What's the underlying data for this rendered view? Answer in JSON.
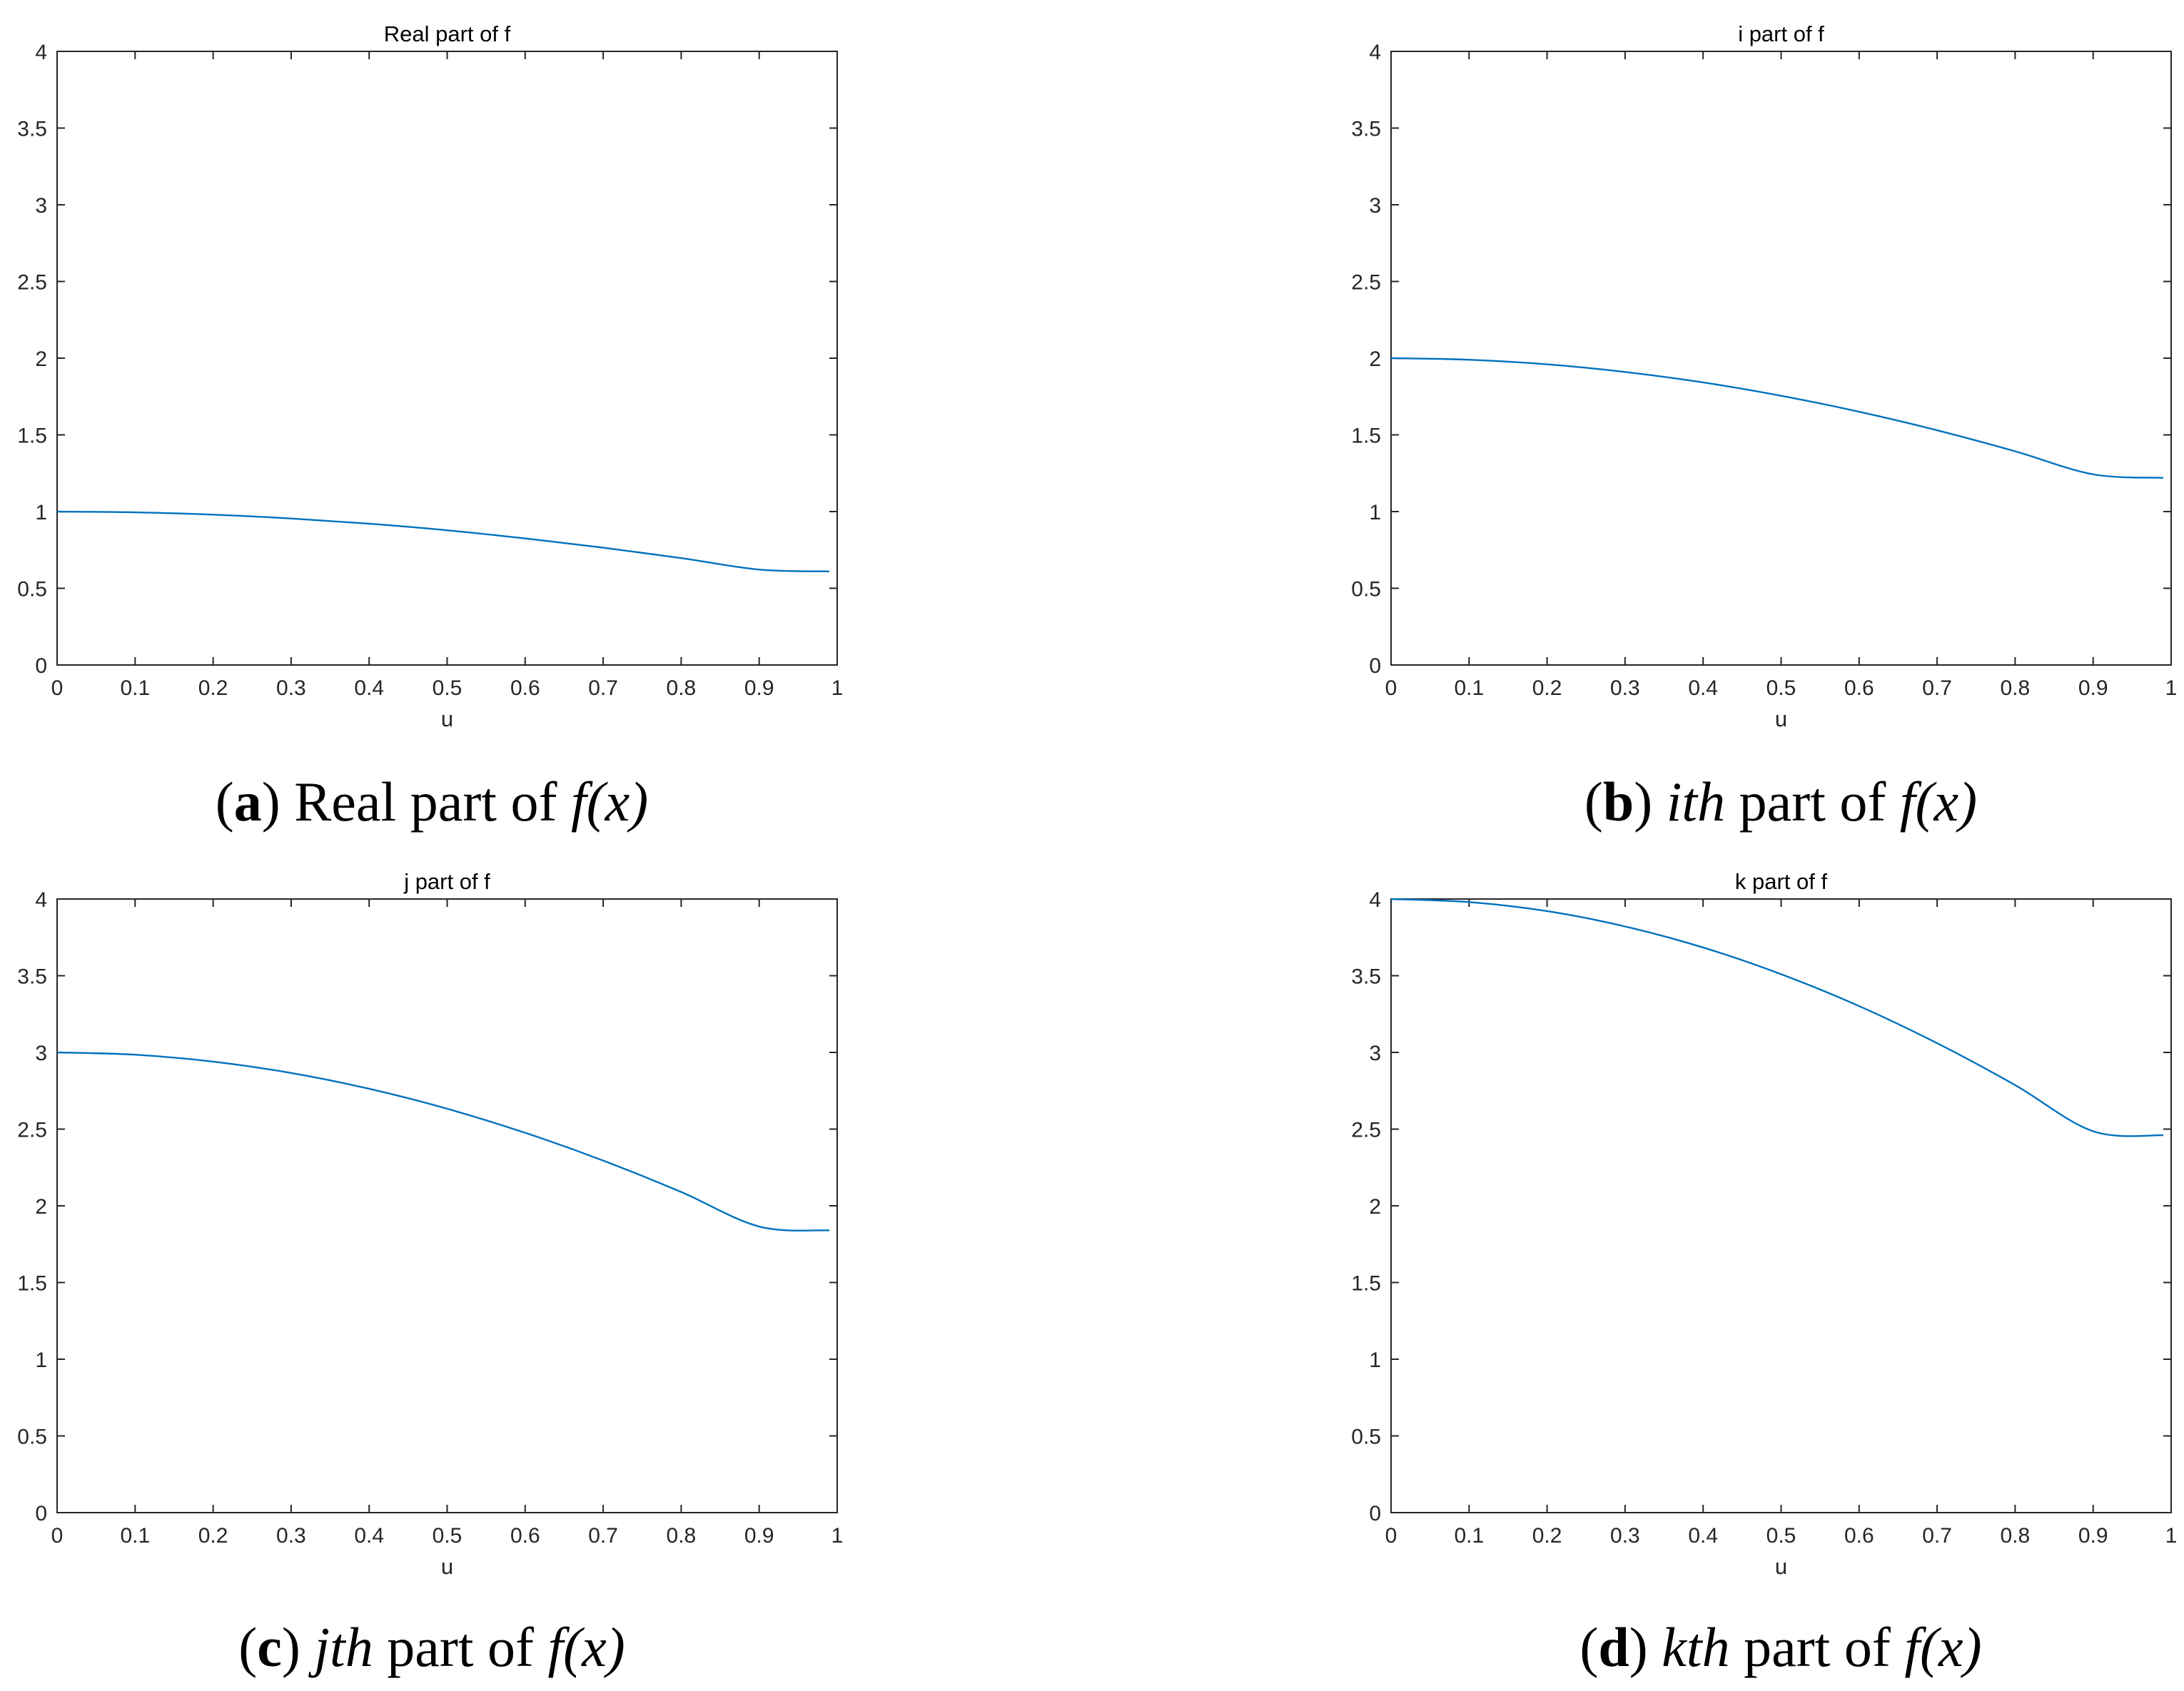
{
  "chart_data": [
    {
      "id": "a",
      "type": "line",
      "title": "Real part of f",
      "xlabel": "u",
      "ylabel": "",
      "xlim": [
        0,
        1
      ],
      "ylim": [
        0,
        4
      ],
      "xticks": [
        "0",
        "0.1",
        "0.2",
        "0.3",
        "0.4",
        "0.5",
        "0.6",
        "0.7",
        "0.8",
        "0.9",
        "1"
      ],
      "yticks": [
        "0",
        "0.5",
        "1",
        "1.5",
        "2",
        "2.5",
        "3",
        "3.5",
        "4"
      ],
      "grid": false,
      "color": "#0072BD",
      "x": [
        0,
        0.1,
        0.2,
        0.3,
        0.4,
        0.5,
        0.6,
        0.7,
        0.8,
        0.9,
        0.99
      ],
      "values": [
        1.0,
        0.995,
        0.98,
        0.955,
        0.921,
        0.878,
        0.825,
        0.765,
        0.697,
        0.622,
        0.61
      ],
      "caption": {
        "letter": "a",
        "prefix": "",
        "italic": "",
        "text": "Real part of ",
        "func": "f",
        "arg": "(x)"
      }
    },
    {
      "id": "b",
      "type": "line",
      "title": "i part of f",
      "xlabel": "u",
      "ylabel": "",
      "xlim": [
        0,
        1
      ],
      "ylim": [
        0,
        4
      ],
      "xticks": [
        "0",
        "0.1",
        "0.2",
        "0.3",
        "0.4",
        "0.5",
        "0.6",
        "0.7",
        "0.8",
        "0.9",
        "1"
      ],
      "yticks": [
        "0",
        "0.5",
        "1",
        "1.5",
        "2",
        "2.5",
        "3",
        "3.5",
        "4"
      ],
      "grid": false,
      "color": "#0072BD",
      "x": [
        0,
        0.1,
        0.2,
        0.3,
        0.4,
        0.5,
        0.6,
        0.7,
        0.8,
        0.9,
        0.99
      ],
      "values": [
        2.0,
        1.99,
        1.96,
        1.91,
        1.842,
        1.755,
        1.651,
        1.53,
        1.393,
        1.243,
        1.22
      ],
      "caption": {
        "letter": "b",
        "prefix": "",
        "italic": "ith",
        "text": " part of ",
        "func": "f",
        "arg": "(x)"
      }
    },
    {
      "id": "c",
      "type": "line",
      "title": "j part of f",
      "xlabel": "u",
      "ylabel": "",
      "xlim": [
        0,
        1
      ],
      "ylim": [
        0,
        4
      ],
      "xticks": [
        "0",
        "0.1",
        "0.2",
        "0.3",
        "0.4",
        "0.5",
        "0.6",
        "0.7",
        "0.8",
        "0.9",
        "1"
      ],
      "yticks": [
        "0",
        "0.5",
        "1",
        "1.5",
        "2",
        "2.5",
        "3",
        "3.5",
        "4"
      ],
      "grid": false,
      "color": "#0072BD",
      "x": [
        0,
        0.1,
        0.2,
        0.3,
        0.4,
        0.5,
        0.6,
        0.7,
        0.8,
        0.9,
        0.99
      ],
      "values": [
        3.0,
        2.985,
        2.94,
        2.866,
        2.763,
        2.633,
        2.476,
        2.295,
        2.09,
        1.865,
        1.84
      ],
      "caption": {
        "letter": "c",
        "prefix": "",
        "italic": "jth",
        "text": " part of ",
        "func": "f",
        "arg": "(x)"
      }
    },
    {
      "id": "d",
      "type": "line",
      "title": "k part of f",
      "xlabel": "u",
      "ylabel": "",
      "xlim": [
        0,
        1
      ],
      "ylim": [
        0,
        4
      ],
      "xticks": [
        "0",
        "0.1",
        "0.2",
        "0.3",
        "0.4",
        "0.5",
        "0.6",
        "0.7",
        "0.8",
        "0.9",
        "1"
      ],
      "yticks": [
        "0",
        "0.5",
        "1",
        "1.5",
        "2",
        "2.5",
        "3",
        "3.5",
        "4"
      ],
      "grid": false,
      "color": "#0072BD",
      "x": [
        0,
        0.1,
        0.2,
        0.3,
        0.4,
        0.5,
        0.6,
        0.7,
        0.8,
        0.9,
        0.99
      ],
      "values": [
        4.0,
        3.98,
        3.921,
        3.821,
        3.684,
        3.51,
        3.302,
        3.06,
        2.787,
        2.486,
        2.46
      ],
      "caption": {
        "letter": "d",
        "prefix": "",
        "italic": "kth",
        "text": " part of ",
        "func": "f",
        "arg": "(x)"
      }
    }
  ]
}
